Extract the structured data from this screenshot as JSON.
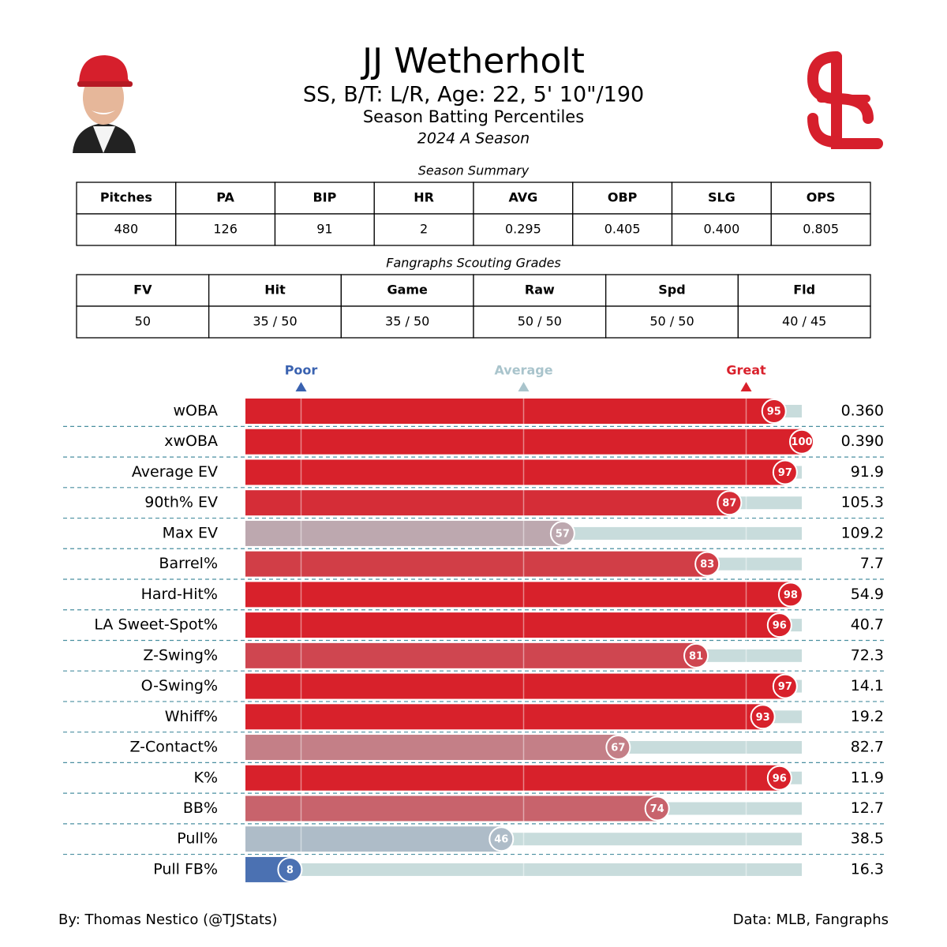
{
  "header": {
    "name": "JJ Wetherholt",
    "bio": "SS, B/T: L/R, Age: 22, 5' 10\"/190",
    "title": "Season Batting Percentiles",
    "season": "2024 A Season"
  },
  "summary": {
    "title": "Season Summary",
    "columns": [
      "Pitches",
      "PA",
      "BIP",
      "HR",
      "AVG",
      "OBP",
      "SLG",
      "OPS"
    ],
    "values": [
      "480",
      "126",
      "91",
      "2",
      "0.295",
      "0.405",
      "0.400",
      "0.805"
    ]
  },
  "grades": {
    "title": "Fangraphs Scouting Grades",
    "columns": [
      "FV",
      "Hit",
      "Game",
      "Raw",
      "Spd",
      "Fld"
    ],
    "values": [
      "50",
      "35 / 50",
      "35 / 50",
      "50 / 50",
      "50 / 50",
      "40 / 45"
    ]
  },
  "chart_data": {
    "type": "bar",
    "orientation": "horizontal",
    "categories": [
      "wOBA",
      "xwOBA",
      "Average EV",
      "90th% EV",
      "Max EV",
      "Barrel%",
      "Hard-Hit%",
      "LA Sweet-Spot%",
      "Z-Swing%",
      "O-Swing%",
      "Whiff%",
      "Z-Contact%",
      "K%",
      "BB%",
      "Pull%",
      "Pull FB%"
    ],
    "values": [
      95,
      100,
      97,
      87,
      57,
      83,
      98,
      96,
      81,
      97,
      93,
      67,
      96,
      74,
      46,
      8
    ],
    "stats": [
      "0.360",
      "0.390",
      "91.9",
      "105.3",
      "109.2",
      "7.7",
      "54.9",
      "40.7",
      "72.3",
      "14.1",
      "19.2",
      "82.7",
      "11.9",
      "12.7",
      "38.5",
      "16.3"
    ],
    "xlim": [
      0,
      100
    ],
    "markers": [
      {
        "value": 10,
        "label": "Poor",
        "color": "#3a62b0"
      },
      {
        "value": 50,
        "label": "Average",
        "color": "#a9c4cc"
      },
      {
        "value": 90,
        "label": "Great",
        "color": "#d9202b"
      }
    ],
    "colormap": [
      {
        "value": 0,
        "color": "#3661ad"
      },
      {
        "value": 50,
        "color": "#b8c4ca"
      },
      {
        "value": 75,
        "color": "#c95f68"
      },
      {
        "value": 90,
        "color": "#d8212b"
      },
      {
        "value": 100,
        "color": "#d8212b"
      }
    ],
    "track_color": "#c8dcdc",
    "grid": true
  },
  "footer": {
    "credit": "By: Thomas Nestico (@TJStats)",
    "source": "Data: MLB, Fangraphs"
  }
}
